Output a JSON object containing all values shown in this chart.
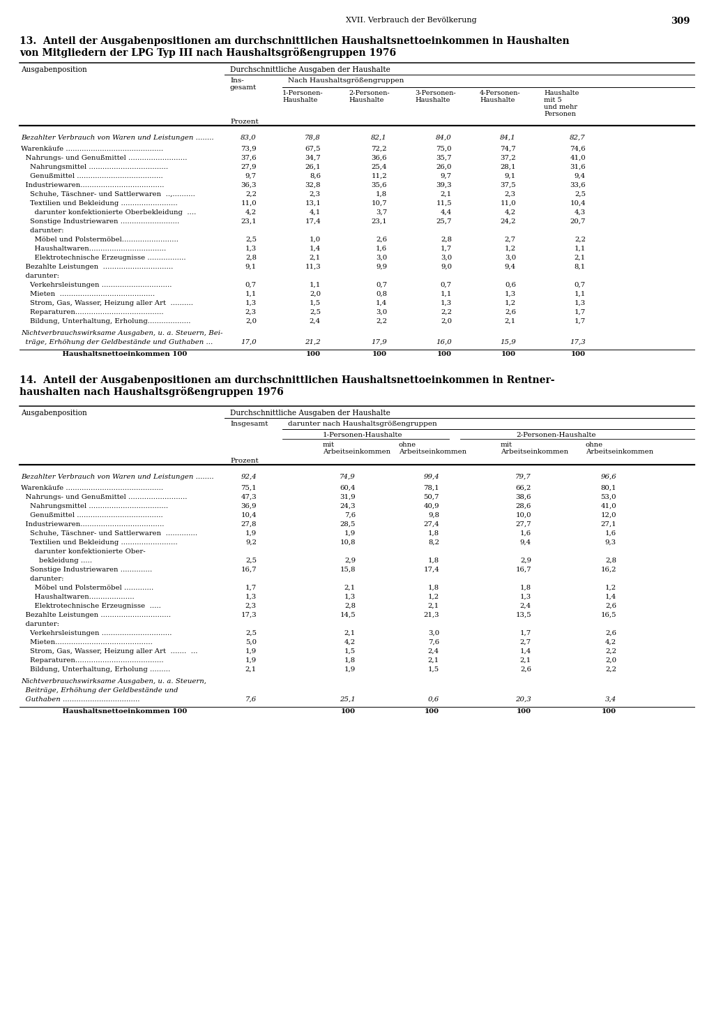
{
  "page_header": "XVII. Verbrauch der Bevölkerung",
  "page_number": "309",
  "t13_title1": "13.  Anteil der Ausgabenpositionen am durchschnittlichen Haushaltsnettoeinkommen in Haushalten",
  "t13_title2": "von Mitgliedern der LPG Typ III nach Haushaltsgrößengruppen 1976",
  "t14_title1": "14.  Anteil der Ausgabenpositionen am durchschnittlichen Haushaltsnettoeinkommen in Rentner-",
  "t14_title2": "haushalten nach Haushaltsgrößengruppen 1976",
  "bg": "#ffffff"
}
